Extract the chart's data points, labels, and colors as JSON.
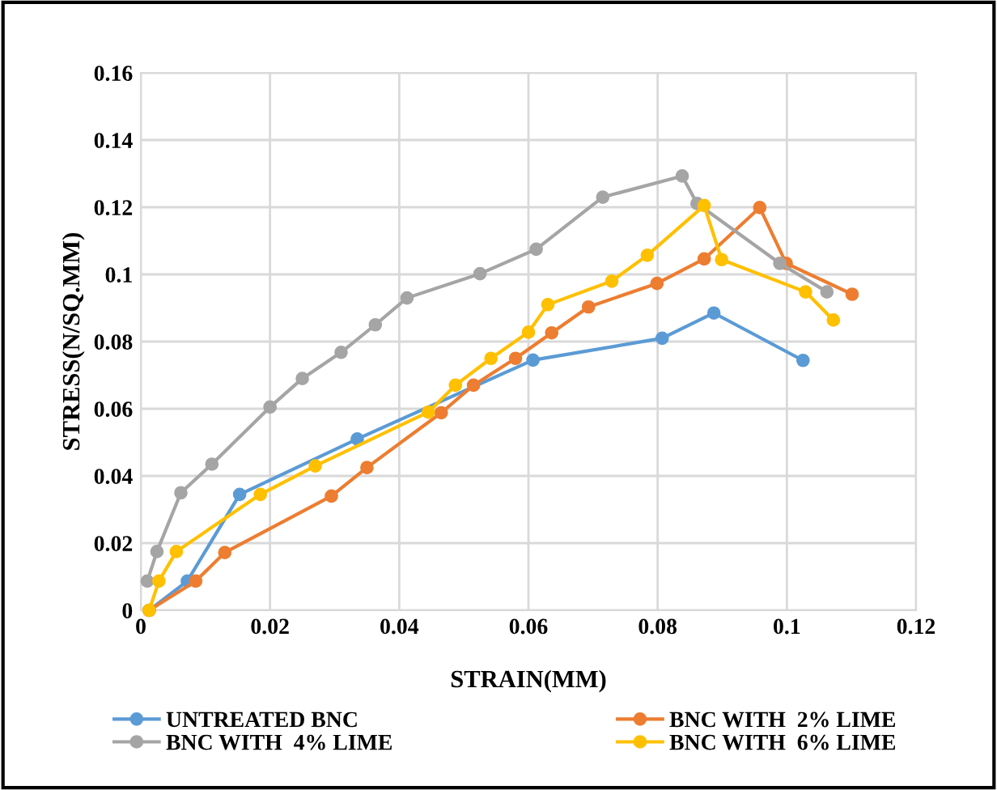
{
  "chart_data": {
    "type": "line",
    "xlabel": "STRAIN(MM)",
    "ylabel": "STRESS(N/SQ.MM)",
    "xlim": [
      0,
      0.12
    ],
    "xticks": [
      0,
      0.02,
      0.04,
      0.06,
      0.08,
      0.1,
      0.12
    ],
    "ylim": [
      0,
      0.16
    ],
    "yticks": [
      0,
      0.02,
      0.04,
      0.06,
      0.08,
      0.1,
      0.12,
      0.14,
      0.16
    ],
    "grid": true,
    "legend": "bottom",
    "marker": "circle",
    "line_style": "solid",
    "series": [
      {
        "name": "UNTREATED BNC",
        "color": "#5b9bd5",
        "x": [
          0.0013,
          0.0072,
          0.0153,
          0.0335,
          0.0607,
          0.0807,
          0.0887,
          0.1025
        ],
        "values": [
          0,
          0.0087,
          0.0345,
          0.051,
          0.0745,
          0.081,
          0.0885,
          0.0744
        ]
      },
      {
        "name": "BNC WITH  2% LIME",
        "color": "#ed7d31",
        "x": [
          0.0013,
          0.0085,
          0.013,
          0.0295,
          0.035,
          0.0465,
          0.0515,
          0.058,
          0.0636,
          0.0693,
          0.0799,
          0.0872,
          0.0958,
          0.0999,
          0.1101
        ],
        "values": [
          0,
          0.0087,
          0.0172,
          0.034,
          0.0425,
          0.0588,
          0.067,
          0.075,
          0.0826,
          0.0903,
          0.0973,
          0.1046,
          0.1199,
          0.1033,
          0.0941
        ]
      },
      {
        "name": "BNC WITH  4% LIME",
        "color": "#a5a5a5",
        "x": [
          0.001,
          0.0025,
          0.0062,
          0.011,
          0.02,
          0.025,
          0.031,
          0.0363,
          0.0412,
          0.0525,
          0.0612,
          0.0715,
          0.0838,
          0.0861,
          0.0989,
          0.1062
        ],
        "values": [
          0.0087,
          0.0175,
          0.035,
          0.0435,
          0.0605,
          0.069,
          0.0768,
          0.085,
          0.093,
          0.1002,
          0.1075,
          0.123,
          0.1293,
          0.1211,
          0.1033,
          0.0948
        ]
      },
      {
        "name": "BNC WITH  6% LIME",
        "color": "#ffc000",
        "x": [
          0.0013,
          0.0028,
          0.0055,
          0.0185,
          0.027,
          0.0445,
          0.0487,
          0.0542,
          0.06,
          0.063,
          0.0729,
          0.0784,
          0.0872,
          0.0899,
          0.1029,
          0.1072
        ],
        "values": [
          0,
          0.0087,
          0.0175,
          0.0345,
          0.043,
          0.059,
          0.067,
          0.075,
          0.0828,
          0.091,
          0.098,
          0.1057,
          0.1205,
          0.1044,
          0.0948,
          0.0864
        ]
      }
    ]
  }
}
